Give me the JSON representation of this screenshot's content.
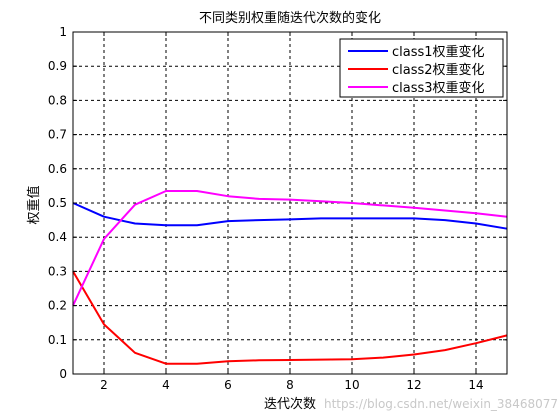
{
  "watermark": "https://blog.csdn.net/weixin_38468077",
  "chart_data": {
    "type": "line",
    "title": "不同类别权重随迭代次数的变化",
    "xlabel": "迭代次数",
    "ylabel": "权重值",
    "xlim": [
      1,
      15
    ],
    "ylim": [
      0,
      1
    ],
    "xticks": [
      2,
      4,
      6,
      8,
      10,
      12,
      14
    ],
    "yticks": [
      0,
      0.1,
      0.2,
      0.3,
      0.4,
      0.5,
      0.6,
      0.7,
      0.8,
      0.9,
      1
    ],
    "ytick_labels": [
      "0",
      "0.1",
      "0.2",
      "0.3",
      "0.4",
      "0.5",
      "0.6",
      "0.7",
      "0.8",
      "0.9",
      "1"
    ],
    "grid": true,
    "grid_style": "dashed",
    "legend_position": "top-right",
    "x": [
      1,
      2,
      3,
      4,
      5,
      6,
      7,
      8,
      9,
      10,
      11,
      12,
      13,
      14,
      15
    ],
    "series": [
      {
        "name": "class1权重变化",
        "color": "#0000ff",
        "values": [
          0.5,
          0.46,
          0.44,
          0.435,
          0.435,
          0.447,
          0.45,
          0.452,
          0.455,
          0.455,
          0.455,
          0.455,
          0.45,
          0.44,
          0.425
        ]
      },
      {
        "name": "class2权重变化",
        "color": "#ff0000",
        "values": [
          0.3,
          0.145,
          0.062,
          0.03,
          0.03,
          0.037,
          0.04,
          0.041,
          0.042,
          0.043,
          0.048,
          0.057,
          0.07,
          0.09,
          0.113
        ]
      },
      {
        "name": "class3权重变化",
        "color": "#ff00ff",
        "values": [
          0.2,
          0.395,
          0.495,
          0.535,
          0.535,
          0.52,
          0.512,
          0.51,
          0.505,
          0.5,
          0.493,
          0.486,
          0.478,
          0.47,
          0.46
        ]
      }
    ]
  }
}
